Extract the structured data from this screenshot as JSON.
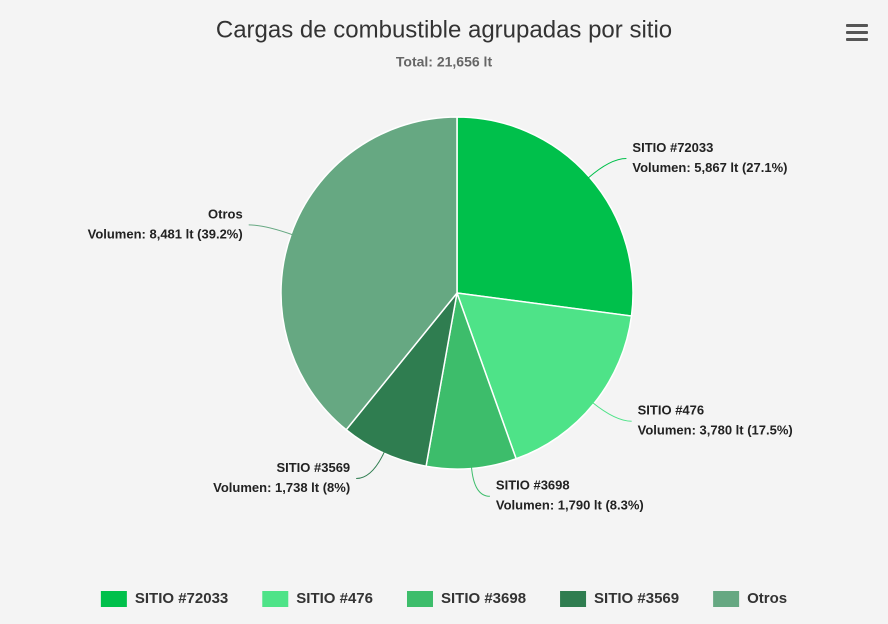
{
  "chart_data": {
    "type": "pie",
    "title": "Cargas de combustible agrupadas por sitio",
    "subtitle": "Total: 21,656 lt",
    "categories": [
      "SITIO #72033",
      "SITIO #476",
      "SITIO #3698",
      "SITIO #3569",
      "Otros"
    ],
    "values": [
      5867,
      3780,
      1790,
      1738,
      8481
    ],
    "value_labels": [
      "Volumen: 5,867 lt (27.1%)",
      "Volumen: 3,780 lt (17.5%)",
      "Volumen: 1,790 lt (8.3%)",
      "Volumen: 1,738 lt (8%)",
      "Volumen: 8,481 lt (39.2%)"
    ],
    "colors": [
      "#00c04b",
      "#4ee388",
      "#3dbd6b",
      "#2f7d50",
      "#66a882"
    ],
    "legend": "bottom"
  }
}
